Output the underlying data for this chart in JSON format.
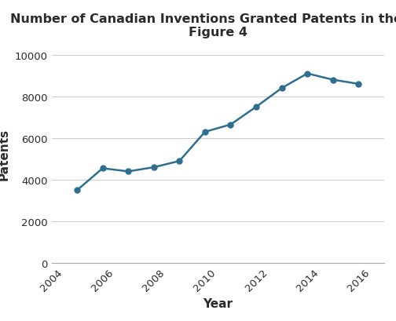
{
  "title_line1": "Number of Canadian Inventions Granted Patents in the US",
  "title_line2": "Figure 4",
  "xlabel": "Year",
  "ylabel": "Patents",
  "years": [
    2005,
    2006,
    2007,
    2008,
    2009,
    2010,
    2011,
    2012,
    2013,
    2014,
    2015,
    2016
  ],
  "values": [
    3500,
    4550,
    4400,
    4600,
    4900,
    6300,
    6650,
    7500,
    8400,
    9100,
    8800,
    8600
  ],
  "xlim": [
    2004,
    2017
  ],
  "ylim": [
    0,
    10500
  ],
  "yticks": [
    0,
    2000,
    4000,
    6000,
    8000,
    10000
  ],
  "xticks": [
    2004,
    2006,
    2008,
    2010,
    2012,
    2014,
    2016
  ],
  "line_color": "#2e6e8e",
  "marker_color": "#2e6e8e",
  "marker_style": "o",
  "marker_size": 5,
  "line_width": 1.8,
  "bg_color": "#ffffff",
  "grid_color": "#cccccc",
  "title_fontsize": 11.5,
  "label_fontsize": 11,
  "tick_fontsize": 9.5,
  "title_color": "#2b2b2b",
  "axis_label_color": "#2b2b2b",
  "tick_color": "#2b2b2b"
}
